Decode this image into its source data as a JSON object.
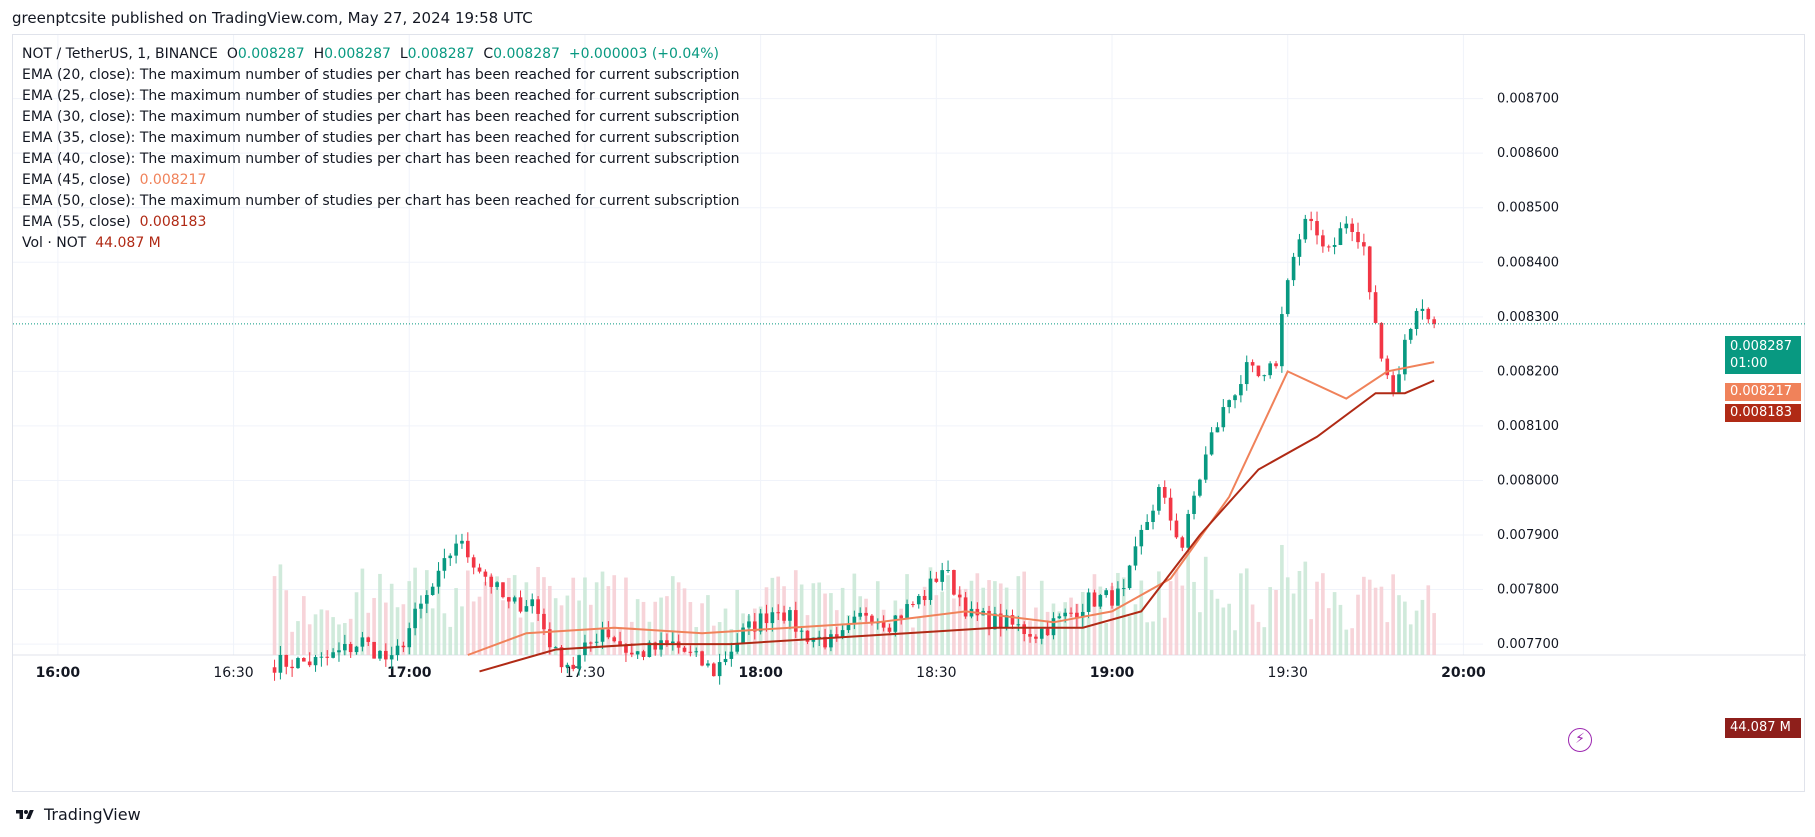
{
  "publisher": "greenptcsite published on TradingView.com, May 27, 2024 19:58 UTC",
  "legend": {
    "symbol": "NOT / TetherUS, 1, BINANCE",
    "o_label": "O",
    "o_value": "0.008287",
    "h_label": "H",
    "h_value": "0.008287",
    "l_label": "L",
    "l_value": "0.008287",
    "c_label": "C",
    "c_value": "0.008287",
    "change": "+0.000003 (+0.04%)",
    "studies": [
      {
        "label": "EMA (20, close):",
        "text": "The maximum number of studies per chart has been reached for current subscription"
      },
      {
        "label": "EMA (25, close):",
        "text": "The maximum number of studies per chart has been reached for current subscription"
      },
      {
        "label": "EMA (30, close):",
        "text": "The maximum number of studies per chart has been reached for current subscription"
      },
      {
        "label": "EMA (35, close):",
        "text": "The maximum number of studies per chart has been reached for current subscription"
      },
      {
        "label": "EMA (40, close):",
        "text": "The maximum number of studies per chart has been reached for current subscription"
      },
      {
        "label": "EMA (45, close)",
        "text": "0.008217"
      },
      {
        "label": "EMA (50, close):",
        "text": "The maximum number of studies per chart has been reached for current subscription"
      },
      {
        "label": "EMA (55, close)",
        "text": "0.008183"
      }
    ],
    "vol_label": "Vol · NOT",
    "vol_value": "44.087 M"
  },
  "price_tags": {
    "last": "0.008287",
    "countdown": "01:00",
    "ema45": "0.008217",
    "ema55": "0.008183",
    "volume": "44.087 M"
  },
  "footer": {
    "brand": "TradingView"
  },
  "colors": {
    "up": "#089981",
    "down": "#f23645",
    "ema45": "#f0825a",
    "ema55": "#b02a15",
    "vol_up": "#c8e6d5",
    "vol_down": "#f6cdd2"
  },
  "chart_data": {
    "type": "candlestick",
    "title": "NOT / TetherUS, 1, BINANCE",
    "x_ticks": [
      "16:00",
      "16:30",
      "17:00",
      "17:30",
      "18:00",
      "18:30",
      "19:00",
      "19:30",
      "20:00"
    ],
    "y_ticks": [
      "0.007700",
      "0.007800",
      "0.007900",
      "0.008000",
      "0.008100",
      "0.008200",
      "0.008300",
      "0.008400",
      "0.008500",
      "0.008600",
      "0.008700"
    ],
    "ylim": [
      0.00768,
      0.00878
    ],
    "time_range": [
      "15:52",
      "20:03"
    ],
    "last_price": 0.008287,
    "anchors": [
      {
        "t": "16:37",
        "p": 0.007665
      },
      {
        "t": "16:45",
        "p": 0.007668
      },
      {
        "t": "16:52",
        "p": 0.007705
      },
      {
        "t": "16:57",
        "p": 0.007665
      },
      {
        "t": "17:01",
        "p": 0.00775
      },
      {
        "t": "17:05",
        "p": 0.00782
      },
      {
        "t": "17:08",
        "p": 0.00789
      },
      {
        "t": "17:12",
        "p": 0.00784
      },
      {
        "t": "17:17",
        "p": 0.00777
      },
      {
        "t": "17:21",
        "p": 0.00778
      },
      {
        "t": "17:25",
        "p": 0.00768
      },
      {
        "t": "17:28",
        "p": 0.00766
      },
      {
        "t": "17:33",
        "p": 0.00773
      },
      {
        "t": "17:38",
        "p": 0.00768
      },
      {
        "t": "17:45",
        "p": 0.0077
      },
      {
        "t": "17:52",
        "p": 0.00765
      },
      {
        "t": "17:57",
        "p": 0.00772
      },
      {
        "t": "18:03",
        "p": 0.00777
      },
      {
        "t": "18:07",
        "p": 0.00772
      },
      {
        "t": "18:13",
        "p": 0.0077
      },
      {
        "t": "18:18",
        "p": 0.00776
      },
      {
        "t": "18:22",
        "p": 0.00774
      },
      {
        "t": "18:28",
        "p": 0.00779
      },
      {
        "t": "18:31",
        "p": 0.00784
      },
      {
        "t": "18:36",
        "p": 0.00775
      },
      {
        "t": "18:41",
        "p": 0.00774
      },
      {
        "t": "18:47",
        "p": 0.00772
      },
      {
        "t": "18:52",
        "p": 0.00775
      },
      {
        "t": "18:56",
        "p": 0.00778
      },
      {
        "t": "19:02",
        "p": 0.00779
      },
      {
        "t": "19:05",
        "p": 0.0079
      },
      {
        "t": "19:08",
        "p": 0.00798
      },
      {
        "t": "19:12",
        "p": 0.00788
      },
      {
        "t": "19:14",
        "p": 0.00797
      },
      {
        "t": "19:17",
        "p": 0.00808
      },
      {
        "t": "19:20",
        "p": 0.00815
      },
      {
        "t": "19:23",
        "p": 0.0082
      },
      {
        "t": "19:26",
        "p": 0.00818
      },
      {
        "t": "19:28",
        "p": 0.00822
      },
      {
        "t": "19:30",
        "p": 0.00838
      },
      {
        "t": "19:33",
        "p": 0.00847
      },
      {
        "t": "19:37",
        "p": 0.00843
      },
      {
        "t": "19:40",
        "p": 0.00847
      },
      {
        "t": "19:43",
        "p": 0.00842
      },
      {
        "t": "19:45",
        "p": 0.00828
      },
      {
        "t": "19:48",
        "p": 0.00816
      },
      {
        "t": "19:50",
        "p": 0.00825
      },
      {
        "t": "19:52",
        "p": 0.00832
      },
      {
        "t": "19:55",
        "p": 0.008287
      }
    ],
    "series": [
      {
        "name": "EMA (45, close)",
        "color": "#f0825a",
        "start": "17:10",
        "points": [
          {
            "t": "17:10",
            "p": 0.00768
          },
          {
            "t": "17:20",
            "p": 0.00772
          },
          {
            "t": "17:35",
            "p": 0.00773
          },
          {
            "t": "17:50",
            "p": 0.00772
          },
          {
            "t": "18:05",
            "p": 0.00773
          },
          {
            "t": "18:20",
            "p": 0.00774
          },
          {
            "t": "18:35",
            "p": 0.00776
          },
          {
            "t": "18:50",
            "p": 0.00774
          },
          {
            "t": "19:00",
            "p": 0.00776
          },
          {
            "t": "19:10",
            "p": 0.00782
          },
          {
            "t": "19:20",
            "p": 0.00797
          },
          {
            "t": "19:30",
            "p": 0.0082
          },
          {
            "t": "19:40",
            "p": 0.00815
          },
          {
            "t": "19:47",
            "p": 0.0082
          },
          {
            "t": "19:55",
            "p": 0.008217
          }
        ]
      },
      {
        "name": "EMA (55, close)",
        "color": "#b02a15",
        "start": "17:12",
        "points": [
          {
            "t": "17:12",
            "p": 0.00765
          },
          {
            "t": "17:25",
            "p": 0.00769
          },
          {
            "t": "17:40",
            "p": 0.0077
          },
          {
            "t": "17:55",
            "p": 0.0077
          },
          {
            "t": "18:10",
            "p": 0.00771
          },
          {
            "t": "18:25",
            "p": 0.00772
          },
          {
            "t": "18:40",
            "p": 0.00773
          },
          {
            "t": "18:55",
            "p": 0.00773
          },
          {
            "t": "19:05",
            "p": 0.00776
          },
          {
            "t": "19:15",
            "p": 0.0079
          },
          {
            "t": "19:25",
            "p": 0.00802
          },
          {
            "t": "19:35",
            "p": 0.00808
          },
          {
            "t": "19:45",
            "p": 0.00816
          },
          {
            "t": "19:50",
            "p": 0.00816
          },
          {
            "t": "19:55",
            "p": 0.008183
          }
        ]
      }
    ]
  }
}
